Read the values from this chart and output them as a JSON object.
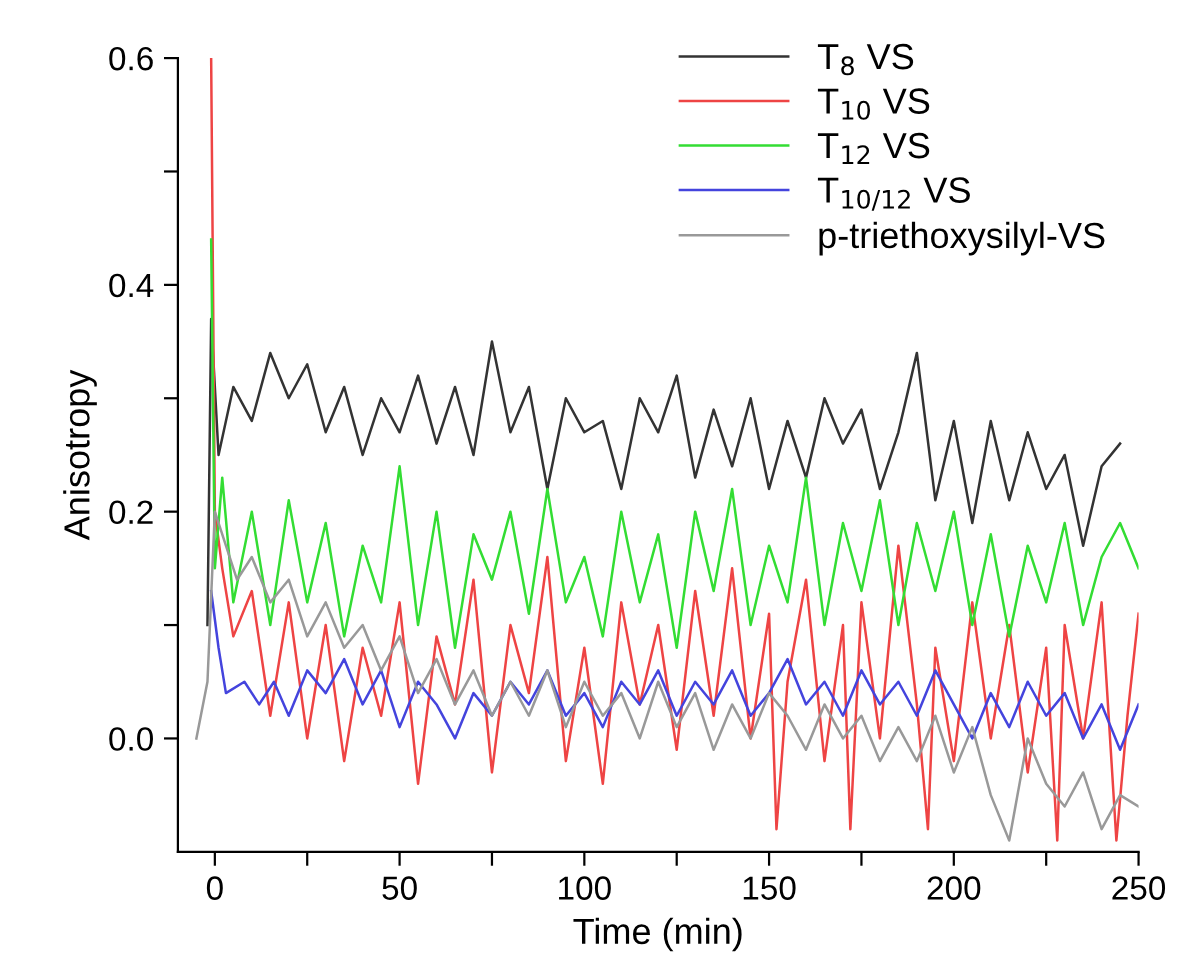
{
  "chart_data": {
    "type": "line",
    "xlabel": "Time (min)",
    "ylabel": "Anisotropy",
    "xlim": [
      -10,
      250
    ],
    "ylim": [
      -0.1,
      0.6
    ],
    "xticks": [
      0,
      {
        "value": 25,
        "label": null
      },
      50,
      {
        "value": 75,
        "label": null
      },
      100,
      {
        "value": 125,
        "label": null
      },
      150,
      {
        "value": 175,
        "label": null
      },
      200,
      {
        "value": 225,
        "label": null
      },
      250
    ],
    "yticks": [
      {
        "value": 0,
        "label": "0.0"
      },
      {
        "value": 0.1,
        "label": null
      },
      {
        "value": 0.2,
        "label": "0.2"
      },
      {
        "value": 0.3,
        "label": null
      },
      {
        "value": 0.4,
        "label": "0.4"
      },
      {
        "value": 0.5,
        "label": null
      },
      {
        "value": 0.6,
        "label": "0.6"
      }
    ],
    "grid": false,
    "legend": "top right",
    "marker": "none",
    "line_style": "solid",
    "series": [
      {
        "name": "T$_{8}$ VS",
        "color": "#333333",
        "x": [
          -2,
          -1,
          1,
          5,
          10,
          15,
          20,
          25,
          30,
          35,
          40,
          45,
          50,
          55,
          60,
          65,
          70,
          75,
          80,
          85,
          90,
          95,
          100,
          105,
          110,
          115,
          120,
          125,
          130,
          135,
          140,
          145,
          150,
          155,
          160,
          165,
          170,
          175,
          180,
          185,
          190,
          195,
          200,
          205,
          210,
          215,
          220,
          225,
          230,
          235,
          240,
          245
        ],
        "values": [
          0.1,
          0.37,
          0.25,
          0.31,
          0.28,
          0.34,
          0.3,
          0.33,
          0.27,
          0.31,
          0.25,
          0.3,
          0.27,
          0.32,
          0.26,
          0.31,
          0.25,
          0.35,
          0.27,
          0.31,
          0.22,
          0.3,
          0.27,
          0.28,
          0.22,
          0.3,
          0.27,
          0.32,
          0.23,
          0.29,
          0.24,
          0.3,
          0.22,
          0.28,
          0.23,
          0.3,
          0.26,
          0.29,
          0.22,
          0.27,
          0.34,
          0.21,
          0.28,
          0.19,
          0.28,
          0.21,
          0.27,
          0.22,
          0.25,
          0.17,
          0.24,
          0.26
        ]
      },
      {
        "name": "T$_{10}$ VS",
        "color": "#ee4444",
        "x": [
          -1,
          0,
          2,
          5,
          10,
          15,
          20,
          25,
          30,
          35,
          40,
          45,
          50,
          55,
          60,
          65,
          70,
          75,
          80,
          85,
          90,
          95,
          100,
          105,
          110,
          115,
          120,
          125,
          130,
          135,
          140,
          145,
          150,
          152,
          155,
          160,
          165,
          170,
          172,
          175,
          180,
          185,
          190,
          193,
          195,
          200,
          205,
          210,
          215,
          220,
          225,
          228,
          230,
          235,
          240,
          244,
          247,
          250
        ],
        "values": [
          0.6,
          0.2,
          0.15,
          0.09,
          0.13,
          0.02,
          0.12,
          0.0,
          0.1,
          -0.02,
          0.08,
          0.02,
          0.12,
          -0.04,
          0.09,
          0.03,
          0.14,
          -0.03,
          0.1,
          0.04,
          0.16,
          -0.02,
          0.08,
          -0.04,
          0.12,
          0.03,
          0.1,
          -0.01,
          0.13,
          0.02,
          0.15,
          0.0,
          0.11,
          -0.08,
          0.05,
          0.14,
          -0.02,
          0.1,
          -0.08,
          0.12,
          0.0,
          0.17,
          0.03,
          -0.08,
          0.08,
          -0.02,
          0.12,
          0.0,
          0.1,
          -0.03,
          0.08,
          -0.09,
          0.1,
          0.0,
          0.12,
          -0.09,
          0.02,
          0.11
        ]
      },
      {
        "name": "T$_{12}$ VS",
        "color": "#33dd33",
        "x": [
          -1,
          0,
          2,
          5,
          10,
          15,
          20,
          25,
          30,
          35,
          40,
          45,
          50,
          55,
          60,
          65,
          70,
          75,
          80,
          85,
          90,
          95,
          100,
          105,
          110,
          115,
          120,
          125,
          130,
          135,
          140,
          145,
          150,
          155,
          160,
          165,
          170,
          175,
          180,
          185,
          190,
          195,
          200,
          205,
          210,
          215,
          220,
          225,
          230,
          235,
          240,
          245,
          250
        ],
        "values": [
          0.44,
          0.15,
          0.23,
          0.12,
          0.2,
          0.1,
          0.21,
          0.12,
          0.19,
          0.09,
          0.17,
          0.12,
          0.24,
          0.1,
          0.2,
          0.08,
          0.18,
          0.14,
          0.2,
          0.11,
          0.22,
          0.12,
          0.16,
          0.09,
          0.2,
          0.12,
          0.18,
          0.08,
          0.2,
          0.13,
          0.22,
          0.1,
          0.17,
          0.12,
          0.23,
          0.1,
          0.19,
          0.13,
          0.21,
          0.1,
          0.19,
          0.13,
          0.2,
          0.1,
          0.18,
          0.09,
          0.17,
          0.12,
          0.19,
          0.1,
          0.16,
          0.19,
          0.15
        ]
      },
      {
        "name": "T$_{10/12}$ VS",
        "color": "#4444dd",
        "x": [
          -1,
          1,
          3,
          8,
          12,
          16,
          20,
          25,
          30,
          35,
          40,
          45,
          50,
          55,
          60,
          65,
          70,
          75,
          80,
          85,
          90,
          95,
          100,
          105,
          110,
          115,
          120,
          125,
          130,
          135,
          140,
          145,
          150,
          155,
          160,
          165,
          170,
          175,
          180,
          185,
          190,
          195,
          200,
          205,
          210,
          215,
          220,
          225,
          230,
          235,
          240,
          245,
          250
        ],
        "values": [
          0.13,
          0.08,
          0.04,
          0.05,
          0.03,
          0.05,
          0.02,
          0.06,
          0.04,
          0.07,
          0.03,
          0.06,
          0.01,
          0.05,
          0.03,
          0.0,
          0.04,
          0.02,
          0.05,
          0.03,
          0.06,
          0.02,
          0.04,
          0.01,
          0.05,
          0.03,
          0.06,
          0.02,
          0.05,
          0.03,
          0.06,
          0.02,
          0.04,
          0.07,
          0.03,
          0.05,
          0.02,
          0.06,
          0.03,
          0.05,
          0.02,
          0.06,
          0.03,
          0.0,
          0.04,
          0.01,
          0.05,
          0.02,
          0.04,
          0.0,
          0.03,
          -0.01,
          0.03
        ]
      },
      {
        "name": "p-triethoxysilyl-VS",
        "color": "#999999",
        "x": [
          -5,
          -2,
          0,
          3,
          6,
          10,
          15,
          20,
          25,
          30,
          35,
          40,
          45,
          50,
          55,
          60,
          65,
          70,
          75,
          80,
          85,
          90,
          95,
          100,
          105,
          110,
          115,
          120,
          125,
          130,
          135,
          140,
          145,
          150,
          155,
          160,
          165,
          170,
          175,
          180,
          185,
          190,
          195,
          200,
          205,
          210,
          215,
          220,
          225,
          230,
          235,
          240,
          245,
          250
        ],
        "values": [
          0.0,
          0.05,
          0.2,
          0.17,
          0.14,
          0.16,
          0.12,
          0.14,
          0.09,
          0.12,
          0.08,
          0.1,
          0.06,
          0.09,
          0.04,
          0.07,
          0.03,
          0.06,
          0.02,
          0.05,
          0.02,
          0.06,
          0.01,
          0.05,
          0.02,
          0.04,
          0.0,
          0.05,
          0.01,
          0.04,
          -0.01,
          0.03,
          0.0,
          0.04,
          0.02,
          -0.01,
          0.03,
          0.0,
          0.02,
          -0.02,
          0.01,
          -0.02,
          0.02,
          -0.03,
          0.01,
          -0.05,
          -0.09,
          0.0,
          -0.04,
          -0.06,
          -0.03,
          -0.08,
          -0.05,
          -0.06
        ]
      }
    ]
  }
}
